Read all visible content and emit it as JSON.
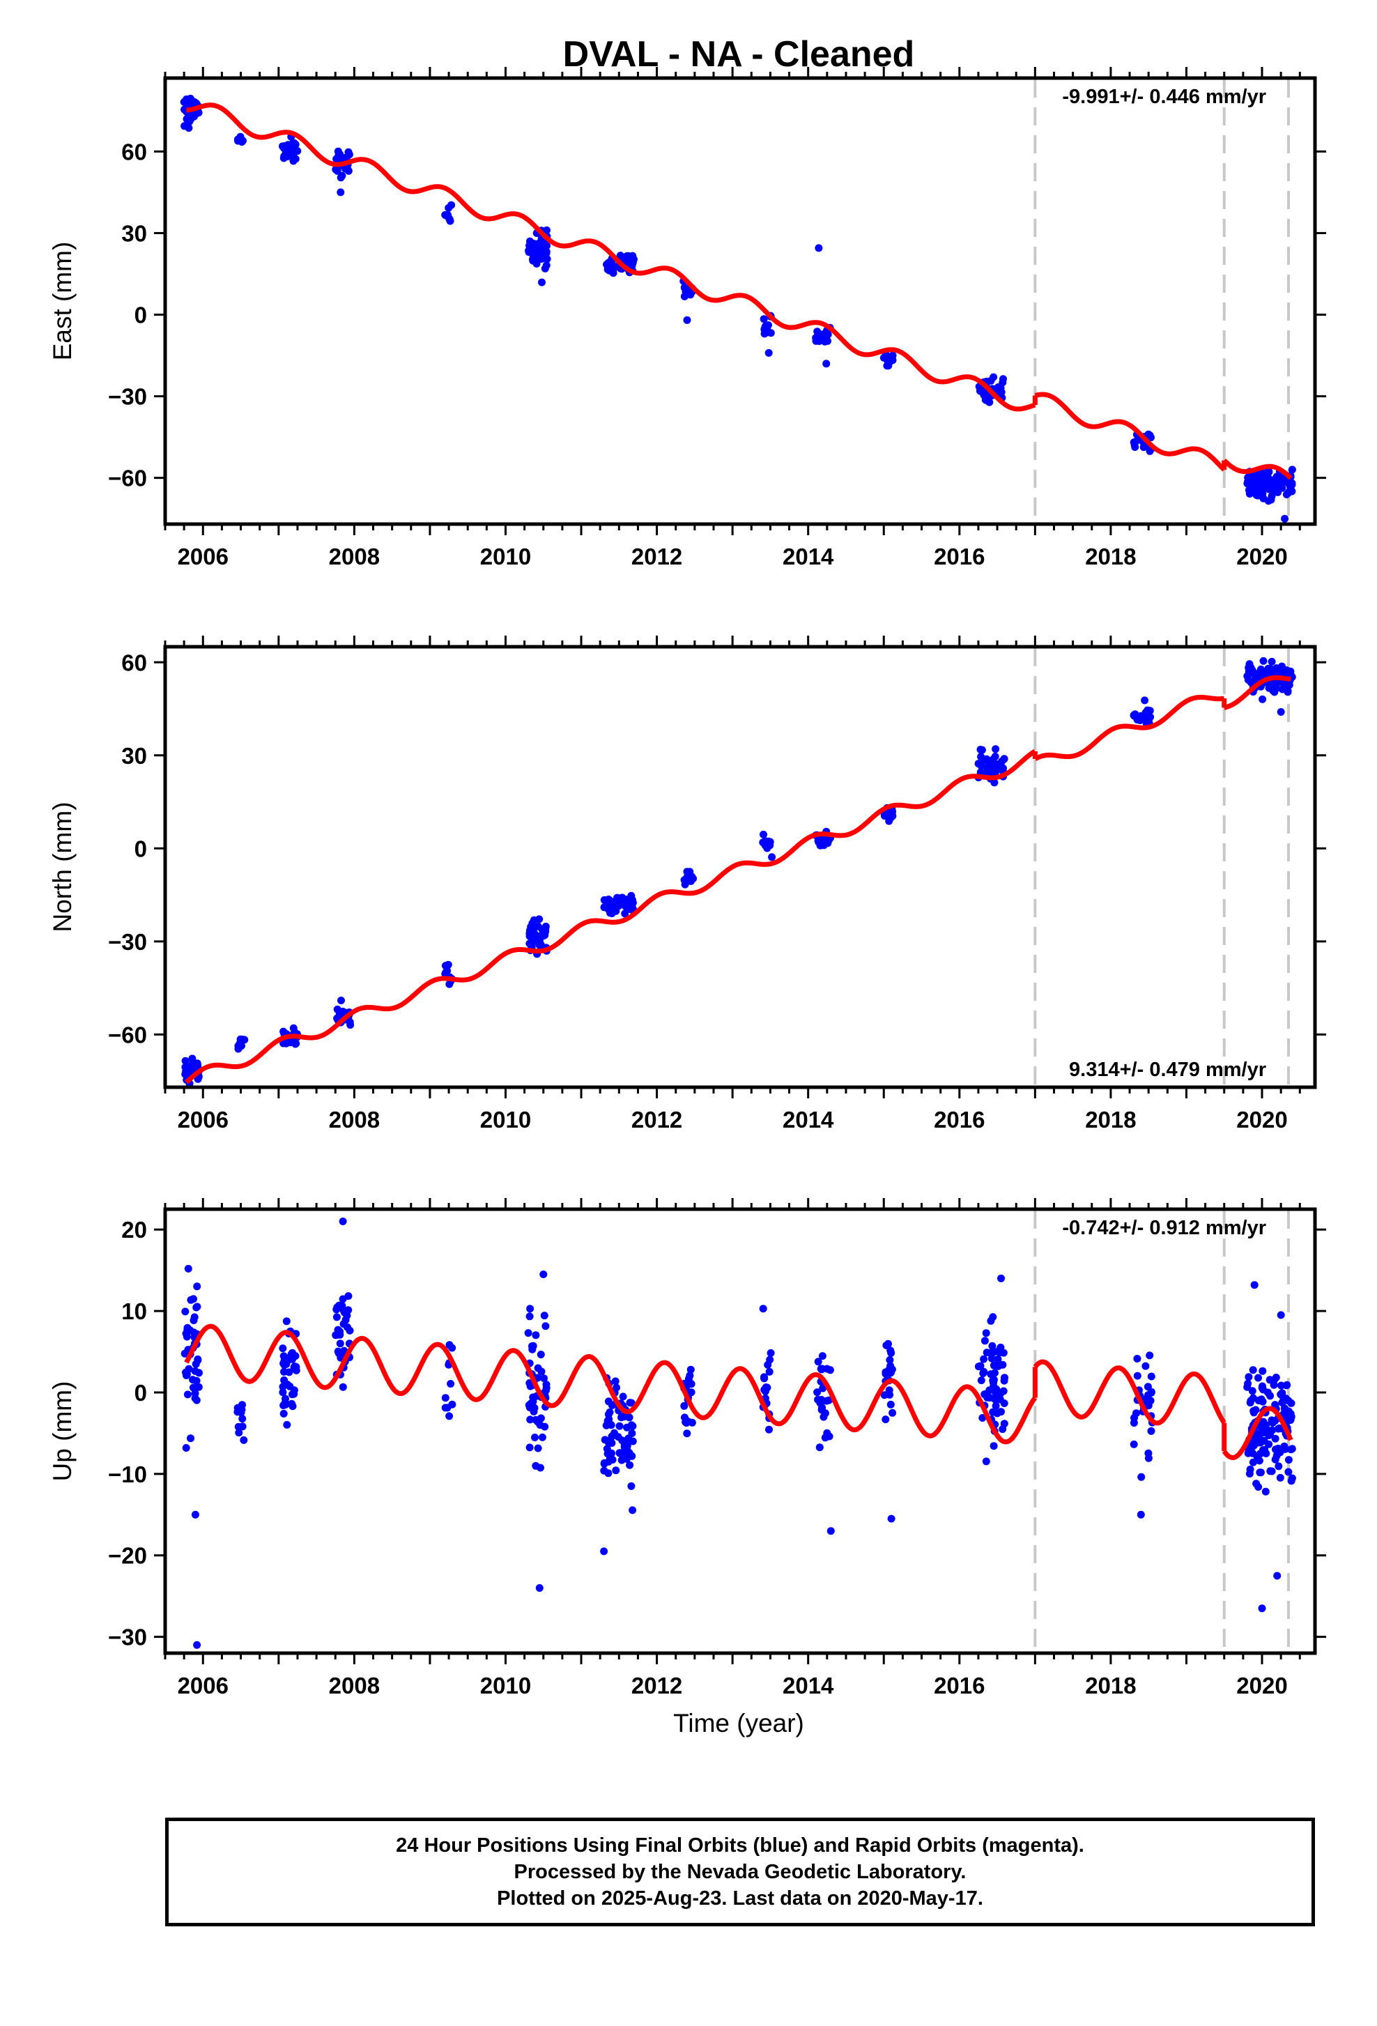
{
  "title": "DVAL  - NA - Cleaned",
  "x_axis_label": "Time (year)",
  "caption": [
    "24 Hour Positions Using Final Orbits (blue) and Rapid Orbits (magenta).",
    "Processed by the Nevada Geodetic Laboratory.",
    "Plotted on 2025-Aug-23. Last data on 2020-May-17."
  ],
  "colors": {
    "final_orbits": "#0000ff",
    "model_fit": "#ff0000",
    "step_lines": "#c8c8c8"
  },
  "chart_data": [
    {
      "type": "scatter",
      "ylabel": "East (mm)",
      "xlim": [
        2005.5,
        2020.7
      ],
      "ylim": [
        -77,
        87
      ],
      "x_ticks": [
        2006,
        2008,
        2010,
        2012,
        2014,
        2016,
        2018,
        2020
      ],
      "y_ticks": [
        -60,
        -30,
        0,
        30,
        60
      ],
      "rate_label": "-9.991+/- 0.446 mm/yr",
      "rate_label_position": "top-right",
      "step_epochs": [
        2017.0,
        2019.5,
        2020.35
      ],
      "model": {
        "rate": -9.991,
        "offset_2006": 75.5,
        "annual_amplitude": 3.0,
        "annual_phase": 0.4,
        "steps": [
          {
            "t": 2017.0,
            "dy": 3.5
          },
          {
            "t": 2019.5,
            "dy": 3.5
          }
        ]
      },
      "clusters": [
        {
          "t0": 2005.75,
          "t1": 2005.95,
          "center": 76,
          "spread": 4,
          "n": 45
        },
        {
          "t0": 2006.45,
          "t1": 2006.55,
          "center": 65,
          "spread": 2,
          "n": 8
        },
        {
          "t0": 2007.05,
          "t1": 2007.25,
          "center": 60,
          "spread": 3,
          "n": 35
        },
        {
          "t0": 2007.75,
          "t1": 2007.95,
          "center": 56,
          "spread": 4,
          "n": 30
        },
        {
          "t0": 2009.2,
          "t1": 2009.3,
          "center": 36,
          "spread": 3,
          "n": 8
        },
        {
          "t0": 2010.3,
          "t1": 2010.55,
          "center": 24,
          "spread": 5,
          "n": 45
        },
        {
          "t0": 2011.3,
          "t1": 2011.7,
          "center": 19,
          "spread": 3,
          "n": 50
        },
        {
          "t0": 2012.35,
          "t1": 2012.48,
          "center": 9,
          "spread": 4,
          "n": 12
        },
        {
          "t0": 2013.4,
          "t1": 2013.52,
          "center": -4,
          "spread": 4,
          "n": 14
        },
        {
          "t0": 2014.1,
          "t1": 2014.3,
          "center": -7,
          "spread": 3,
          "n": 18
        },
        {
          "t0": 2015.0,
          "t1": 2015.12,
          "center": -16,
          "spread": 3,
          "n": 12
        },
        {
          "t0": 2016.25,
          "t1": 2016.6,
          "center": -28,
          "spread": 3,
          "n": 40
        },
        {
          "t0": 2018.3,
          "t1": 2018.55,
          "center": -47,
          "spread": 3,
          "n": 18
        },
        {
          "t0": 2019.8,
          "t1": 2020.4,
          "center": -62,
          "spread": 4,
          "n": 120
        }
      ],
      "outliers": [
        {
          "x": 2014.14,
          "y": 24.5
        },
        {
          "x": 2007.82,
          "y": 45
        },
        {
          "x": 2012.4,
          "y": -2
        },
        {
          "x": 2014.24,
          "y": -18
        },
        {
          "x": 2020.3,
          "y": -75
        }
      ]
    },
    {
      "type": "scatter",
      "ylabel": "North (mm)",
      "xlim": [
        2005.5,
        2020.7
      ],
      "ylim": [
        -77,
        65
      ],
      "x_ticks": [
        2006,
        2008,
        2010,
        2012,
        2014,
        2016,
        2018,
        2020
      ],
      "y_ticks": [
        -60,
        -30,
        0,
        30,
        60
      ],
      "rate_label": "9.314+/- 0.479 mm/yr",
      "rate_label_position": "bottom-right",
      "step_epochs": [
        2017.0,
        2019.5,
        2020.35
      ],
      "model": {
        "rate": 9.314,
        "offset_2006": -73,
        "annual_amplitude": 2.0,
        "annual_phase": 1.2,
        "steps": [
          {
            "t": 2017.0,
            "dy": -2.5
          },
          {
            "t": 2019.5,
            "dy": -3.0
          }
        ]
      },
      "clusters": [
        {
          "t0": 2005.75,
          "t1": 2005.95,
          "center": -72,
          "spread": 3,
          "n": 40
        },
        {
          "t0": 2006.45,
          "t1": 2006.55,
          "center": -63,
          "spread": 2,
          "n": 8
        },
        {
          "t0": 2007.05,
          "t1": 2007.25,
          "center": -61,
          "spread": 2,
          "n": 30
        },
        {
          "t0": 2007.75,
          "t1": 2007.95,
          "center": -54,
          "spread": 3,
          "n": 25
        },
        {
          "t0": 2009.2,
          "t1": 2009.3,
          "center": -40,
          "spread": 3,
          "n": 10
        },
        {
          "t0": 2010.3,
          "t1": 2010.55,
          "center": -28,
          "spread": 4,
          "n": 40
        },
        {
          "t0": 2011.3,
          "t1": 2011.7,
          "center": -18,
          "spread": 3,
          "n": 50
        },
        {
          "t0": 2012.35,
          "t1": 2012.48,
          "center": -9,
          "spread": 3,
          "n": 14
        },
        {
          "t0": 2013.4,
          "t1": 2013.52,
          "center": 1,
          "spread": 3,
          "n": 14
        },
        {
          "t0": 2014.1,
          "t1": 2014.3,
          "center": 3,
          "spread": 2,
          "n": 18
        },
        {
          "t0": 2015.0,
          "t1": 2015.12,
          "center": 11,
          "spread": 2,
          "n": 12
        },
        {
          "t0": 2016.25,
          "t1": 2016.6,
          "center": 27,
          "spread": 4,
          "n": 40
        },
        {
          "t0": 2018.3,
          "t1": 2018.55,
          "center": 42,
          "spread": 3,
          "n": 20
        },
        {
          "t0": 2019.8,
          "t1": 2020.4,
          "center": 55,
          "spread": 3,
          "n": 120
        }
      ],
      "outliers": [
        {
          "x": 2020.25,
          "y": 44
        }
      ]
    },
    {
      "type": "scatter",
      "ylabel": "Up (mm)",
      "xlim": [
        2005.5,
        2020.7
      ],
      "ylim": [
        -32,
        22.5
      ],
      "x_ticks": [
        2006,
        2008,
        2010,
        2012,
        2014,
        2016,
        2018,
        2020
      ],
      "y_ticks": [
        -30,
        -20,
        -10,
        0,
        10,
        20
      ],
      "xlabel": "Time (year)",
      "rate_label": "-0.742+/- 0.912 mm/yr",
      "rate_label_position": "top-right",
      "step_epochs": [
        2017.0,
        2019.5,
        2020.35
      ],
      "model": {
        "rate": -0.742,
        "offset_2006": 5.0,
        "annual_amplitude": 3.2,
        "annual_phase": 0.9,
        "steps": [
          {
            "t": 2017.0,
            "dy": 3.8
          },
          {
            "t": 2019.5,
            "dy": -3.5
          }
        ]
      },
      "clusters": [
        {
          "t0": 2005.75,
          "t1": 2005.95,
          "center": 4,
          "spread": 6,
          "n": 45
        },
        {
          "t0": 2006.45,
          "t1": 2006.55,
          "center": -3,
          "spread": 3,
          "n": 10
        },
        {
          "t0": 2007.05,
          "t1": 2007.25,
          "center": 2,
          "spread": 6,
          "n": 40
        },
        {
          "t0": 2007.75,
          "t1": 2007.95,
          "center": 7,
          "spread": 5,
          "n": 35
        },
        {
          "t0": 2009.2,
          "t1": 2009.3,
          "center": 1,
          "spread": 4,
          "n": 10
        },
        {
          "t0": 2010.3,
          "t1": 2010.55,
          "center": 0,
          "spread": 7,
          "n": 50
        },
        {
          "t0": 2011.3,
          "t1": 2011.7,
          "center": -5,
          "spread": 6,
          "n": 70
        },
        {
          "t0": 2012.35,
          "t1": 2012.48,
          "center": -1,
          "spread": 4,
          "n": 18
        },
        {
          "t0": 2013.4,
          "t1": 2013.52,
          "center": 0,
          "spread": 5,
          "n": 20
        },
        {
          "t0": 2014.1,
          "t1": 2014.3,
          "center": -1,
          "spread": 6,
          "n": 25
        },
        {
          "t0": 2015.0,
          "t1": 2015.12,
          "center": 2,
          "spread": 5,
          "n": 20
        },
        {
          "t0": 2016.25,
          "t1": 2016.6,
          "center": 1,
          "spread": 6,
          "n": 60
        },
        {
          "t0": 2018.3,
          "t1": 2018.55,
          "center": -1,
          "spread": 5,
          "n": 30
        },
        {
          "t0": 2019.8,
          "t1": 2020.4,
          "center": -4,
          "spread": 6,
          "n": 140
        }
      ],
      "outliers": [
        {
          "x": 2005.92,
          "y": -31
        },
        {
          "x": 2005.9,
          "y": -15
        },
        {
          "x": 2007.85,
          "y": 21
        },
        {
          "x": 2010.45,
          "y": -24
        },
        {
          "x": 2010.5,
          "y": 14.5
        },
        {
          "x": 2011.3,
          "y": -19.5
        },
        {
          "x": 2015.1,
          "y": -15.5
        },
        {
          "x": 2018.4,
          "y": -15
        },
        {
          "x": 2020.0,
          "y": -26.5
        },
        {
          "x": 2020.2,
          "y": -22.5
        },
        {
          "x": 2014.3,
          "y": -17
        },
        {
          "x": 2016.55,
          "y": 14
        },
        {
          "x": 2019.9,
          "y": 13.2
        },
        {
          "x": 2020.25,
          "y": 9.5
        }
      ]
    }
  ]
}
